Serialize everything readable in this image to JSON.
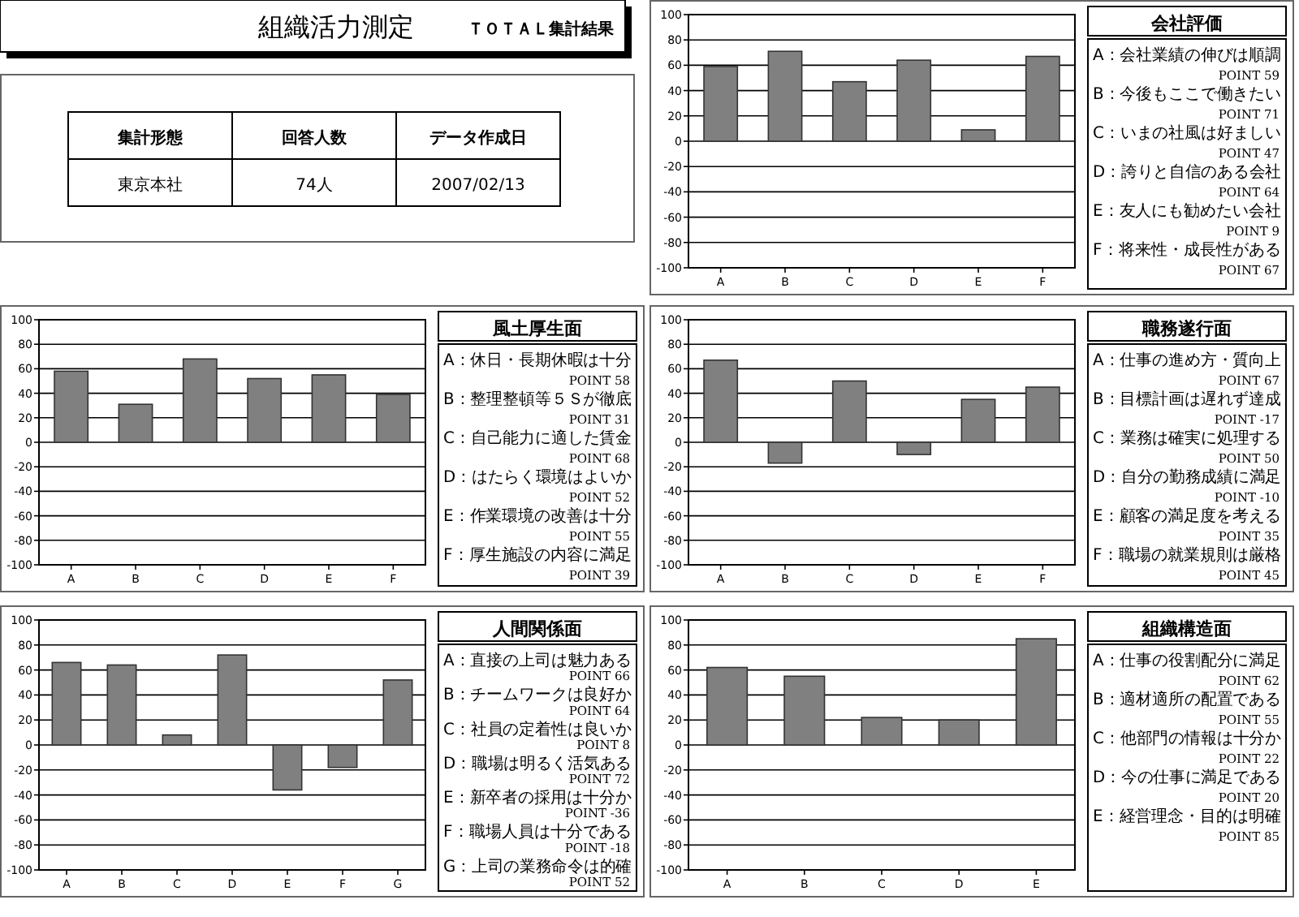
{
  "chart_data": [
    {
      "type": "other",
      "title": "組織活力測定",
      "subtitle": "ＴＯＴＡＬ集計結果",
      "annotations": [
        "集計形態",
        "回答人数",
        "データ作成日",
        "東京本社",
        "74人",
        "2007/02/13"
      ]
    },
    {
      "type": "bar",
      "legend_title": "会社評価",
      "categories": [
        "A",
        "B",
        "C",
        "D",
        "E",
        "F"
      ],
      "values": [
        59,
        71,
        47,
        64,
        9,
        67
      ],
      "annotations": [
        "A：会社業績の伸びは順調",
        "POINT 59",
        "B：今後もここで働きたい",
        "POINT 71",
        "C：いまの社風は好ましい",
        "POINT 47",
        "D：誇りと自信のある会社",
        "POINT 64",
        "E：友人にも勧めたい会社",
        "POINT 9",
        "F：将来性・成長性がある",
        "POINT 67"
      ],
      "color": "#808080",
      "ylim": [
        -100,
        100
      ],
      "yticks": [
        -100,
        -80,
        -60,
        -40,
        -20,
        0,
        20,
        40,
        60,
        80,
        100
      ],
      "grid": "y"
    },
    {
      "type": "bar",
      "legend_title": "風土厚生面",
      "categories": [
        "A",
        "B",
        "C",
        "D",
        "E",
        "F"
      ],
      "values": [
        58,
        31,
        68,
        52,
        55,
        39
      ],
      "annotations": [
        "A：休日・長期休暇は十分",
        "POINT 58",
        "B：整理整頓等５Ｓが徹底",
        "POINT 31",
        "C：自己能力に適した賃金",
        "POINT 68",
        "D：はたらく環境はよいか",
        "POINT 52",
        "E：作業環境の改善は十分",
        "POINT 55",
        "F：厚生施設の内容に満足",
        "POINT 39"
      ],
      "color": "#808080",
      "ylim": [
        -100,
        100
      ],
      "yticks": [
        -100,
        -80,
        -60,
        -40,
        -20,
        0,
        20,
        40,
        60,
        80,
        100
      ],
      "grid": "y"
    },
    {
      "type": "bar",
      "legend_title": "職務遂行面",
      "categories": [
        "A",
        "B",
        "C",
        "D",
        "E",
        "F"
      ],
      "values": [
        67,
        -17,
        50,
        -10,
        35,
        45
      ],
      "annotations": [
        "A：仕事の進め方・質向上",
        "POINT 67",
        "B：目標計画は遅れず達成",
        "POINT -17",
        "C：業務は確実に処理する",
        "POINT 50",
        "D：自分の勤務成績に満足",
        "POINT -10",
        "E：顧客の満足度を考える",
        "POINT 35",
        "F：職場の就業規則は厳格",
        "POINT 45"
      ],
      "color": "#808080",
      "ylim": [
        -100,
        100
      ],
      "yticks": [
        -100,
        -80,
        -60,
        -40,
        -20,
        0,
        20,
        40,
        60,
        80,
        100
      ],
      "grid": "y"
    },
    {
      "type": "bar",
      "legend_title": "人間関係面",
      "categories": [
        "A",
        "B",
        "C",
        "D",
        "E",
        "F",
        "G"
      ],
      "values": [
        66,
        64,
        8,
        72,
        -36,
        -18,
        52
      ],
      "annotations": [
        "A：直接の上司は魅力ある",
        "POINT 66",
        "B：チームワークは良好か",
        "POINT 64",
        "C：社員の定着性は良いか",
        "POINT 8",
        "D：職場は明るく活気ある",
        "POINT 72",
        "E：新卒者の採用は十分か",
        "POINT -36",
        "F：職場人員は十分である",
        "POINT -18",
        "G：上司の業務命令は的確",
        "POINT 52"
      ],
      "color": "#808080",
      "ylim": [
        -100,
        100
      ],
      "yticks": [
        -100,
        -80,
        -60,
        -40,
        -20,
        0,
        20,
        40,
        60,
        80,
        100
      ],
      "grid": "y"
    },
    {
      "type": "bar",
      "legend_title": "組織構造面",
      "categories": [
        "A",
        "B",
        "C",
        "D",
        "E"
      ],
      "values": [
        62,
        55,
        22,
        20,
        85
      ],
      "annotations": [
        "A：仕事の役割配分に満足",
        "POINT 62",
        "B：適材適所の配置である",
        "POINT 55",
        "C：他部門の情報は十分か",
        "POINT 22",
        "D：今の仕事に満足である",
        "POINT 20",
        "E：経営理念・目的は明確",
        "POINT 85"
      ],
      "color": "#808080",
      "ylim": [
        -100,
        100
      ],
      "yticks": [
        -100,
        -80,
        -60,
        -40,
        -20,
        0,
        20,
        40,
        60,
        80,
        100
      ],
      "grid": "y"
    }
  ]
}
